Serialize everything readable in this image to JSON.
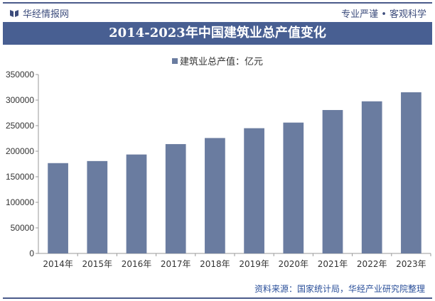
{
  "header": {
    "brand": "华经情报网",
    "slogan": "专业严谨 • 客观科学"
  },
  "chart_data": {
    "type": "bar",
    "title": "2014-2023年中国建筑业总产值变化",
    "categories": [
      "2014年",
      "2015年",
      "2016年",
      "2017年",
      "2018年",
      "2019年",
      "2020年",
      "2021年",
      "2022年",
      "2023年"
    ],
    "series": [
      {
        "name": "建筑业总产值：亿元",
        "values": [
          176713,
          180757,
          193567,
          213944,
          225817,
          245000,
          256000,
          280600,
          297600,
          315300
        ],
        "color": "#6a7ca0"
      }
    ],
    "ylim": [
      0,
      350000
    ],
    "yticks": [
      "0",
      "50000",
      "100000",
      "150000",
      "200000",
      "250000",
      "300000",
      "350000"
    ],
    "grid": false,
    "legend": "top"
  },
  "footer": {
    "source": "资料来源：国家统计局，华经产业研究院整理"
  }
}
